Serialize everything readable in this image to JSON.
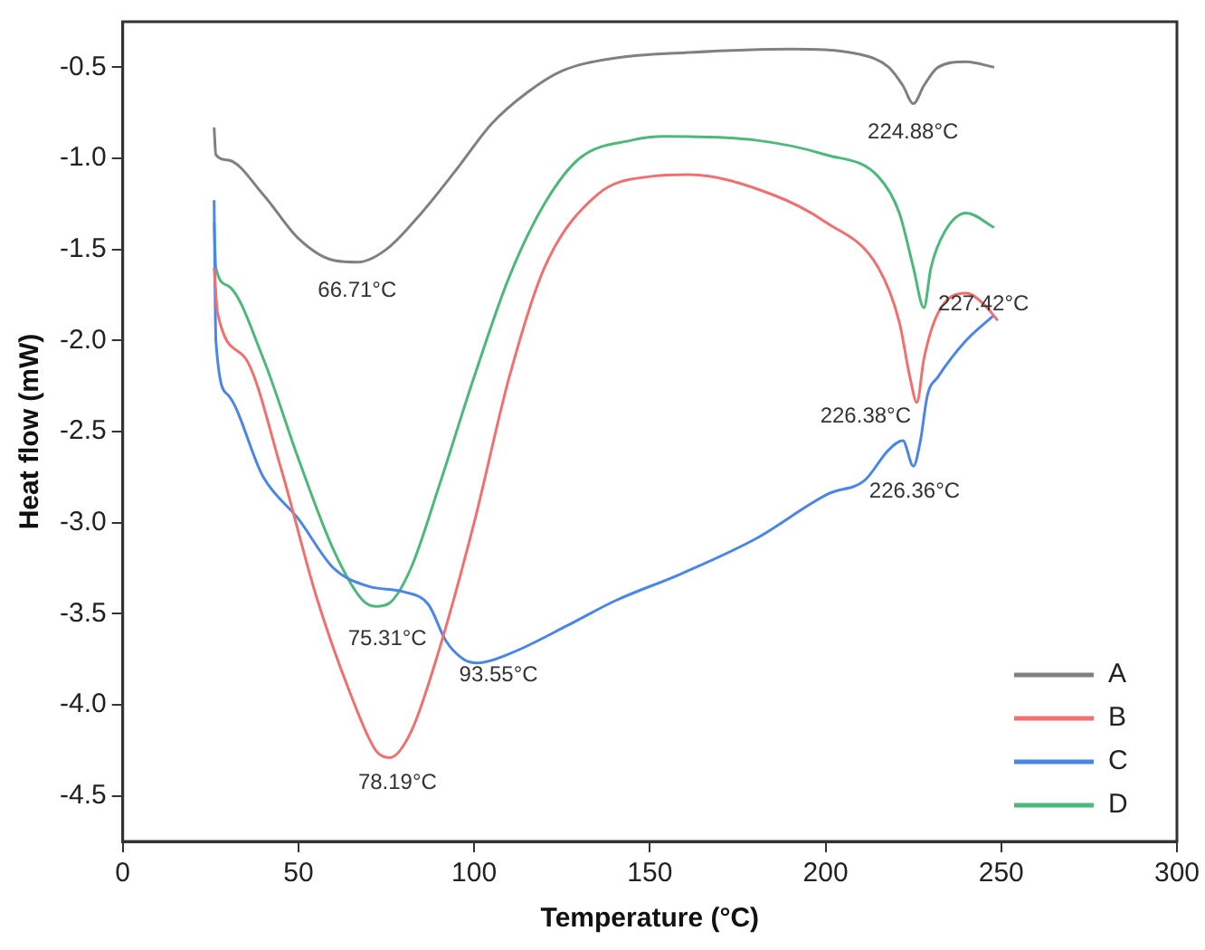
{
  "chart_data": {
    "type": "line",
    "xlabel": "Temperature (°C)",
    "ylabel": "Heat flow (mW)",
    "xlim": [
      0,
      300
    ],
    "xticks": [
      0,
      50,
      100,
      150,
      200,
      250,
      300
    ],
    "ylim": [
      -4.75,
      -0.25
    ],
    "yticks": [
      {
        "value": -0.5,
        "label": "-0.5"
      },
      {
        "value": -1,
        "label": "-1.0"
      },
      {
        "value": -1.5,
        "label": "-1.5"
      },
      {
        "value": -2,
        "label": "-2.0"
      },
      {
        "value": -2.5,
        "label": "-2.5"
      },
      {
        "value": -3,
        "label": "-3.0"
      },
      {
        "value": -3.5,
        "label": "-3.5"
      },
      {
        "value": -4,
        "label": "-4.0"
      },
      {
        "value": -4.5,
        "label": "-4.5"
      }
    ],
    "grid": false,
    "legend": "bottom right",
    "marker": "none",
    "line_style": "solid",
    "series": [
      {
        "name": "A",
        "color": "#808080",
        "x": [
          26,
          26.5,
          30,
          40,
          50,
          60,
          67,
          75,
          85,
          95,
          105,
          115,
          125,
          140,
          160,
          190,
          210,
          218,
          222,
          225,
          228,
          232,
          240,
          248
        ],
        "values": [
          -0.83,
          -0.98,
          -1.01,
          -1.2,
          -1.44,
          -1.56,
          -1.57,
          -1.5,
          -1.3,
          -1.06,
          -0.81,
          -0.64,
          -0.52,
          -0.45,
          -0.42,
          -0.4,
          -0.43,
          -0.5,
          -0.6,
          -0.7,
          -0.6,
          -0.5,
          -0.47,
          -0.5
        ]
      },
      {
        "name": "B",
        "color": "#f07070",
        "x": [
          26,
          27,
          35,
          45,
          55,
          65,
          72,
          76,
          82,
          90,
          100,
          110,
          120,
          135,
          150,
          161,
          185,
          200,
          215,
          221,
          224,
          226,
          228,
          232,
          240,
          245,
          249
        ],
        "values": [
          -1.6,
          -1.85,
          -2.1,
          -2.7,
          -3.4,
          -3.95,
          -4.25,
          -4.29,
          -4.15,
          -3.7,
          -3.0,
          -2.2,
          -1.6,
          -1.2,
          -1.1,
          -1.09,
          -1.2,
          -1.35,
          -1.6,
          -1.9,
          -2.2,
          -2.34,
          -2.1,
          -1.85,
          -1.74,
          -1.8,
          -1.89
        ]
      },
      {
        "name": "C",
        "color": "#4a86e8",
        "x": [
          26,
          26.5,
          30,
          40,
          50,
          60,
          70,
          80,
          87,
          92,
          97,
          101,
          110,
          127,
          140,
          159,
          180,
          201,
          211,
          218,
          222,
          225,
          227,
          229,
          232,
          240,
          248
        ],
        "values": [
          -1.23,
          -2.0,
          -2.3,
          -2.75,
          -2.98,
          -3.25,
          -3.35,
          -3.38,
          -3.45,
          -3.65,
          -3.75,
          -3.77,
          -3.72,
          -3.56,
          -3.43,
          -3.28,
          -3.09,
          -2.84,
          -2.77,
          -2.6,
          -2.55,
          -2.69,
          -2.55,
          -2.3,
          -2.2,
          -2.0,
          -1.86
        ]
      },
      {
        "name": "D",
        "color": "#4cb87a",
        "x": [
          26,
          26.5,
          30,
          40,
          50,
          60,
          68,
          72,
          76,
          82,
          90,
          100,
          110,
          120,
          130,
          145,
          154,
          180,
          200,
          215,
          221,
          225,
          228,
          230,
          234,
          240,
          248
        ],
        "values": [
          -1.35,
          -1.6,
          -1.7,
          -2.1,
          -2.65,
          -3.15,
          -3.42,
          -3.46,
          -3.44,
          -3.25,
          -2.8,
          -2.2,
          -1.65,
          -1.25,
          -1.0,
          -0.9,
          -0.88,
          -0.9,
          -0.98,
          -1.1,
          -1.3,
          -1.6,
          -1.82,
          -1.6,
          -1.4,
          -1.3,
          -1.38
        ]
      }
    ],
    "annotations": [
      {
        "text": "66.71°C",
        "x": 66.71,
        "y": -1.57
      },
      {
        "text": "224.88°C",
        "x": 224.88,
        "y": -0.7
      },
      {
        "text": "227.42°C",
        "x": 227.42,
        "y": -1.82
      },
      {
        "text": "226.38°C",
        "x": 226.38,
        "y": -2.34
      },
      {
        "text": "226.36°C",
        "x": 226.36,
        "y": -2.69
      },
      {
        "text": "75.31°C",
        "x": 75.31,
        "y": -3.46
      },
      {
        "text": "78.19°C",
        "x": 78.19,
        "y": -4.29
      },
      {
        "text": "93.55°C",
        "x": 93.55,
        "y": -3.7
      }
    ]
  }
}
